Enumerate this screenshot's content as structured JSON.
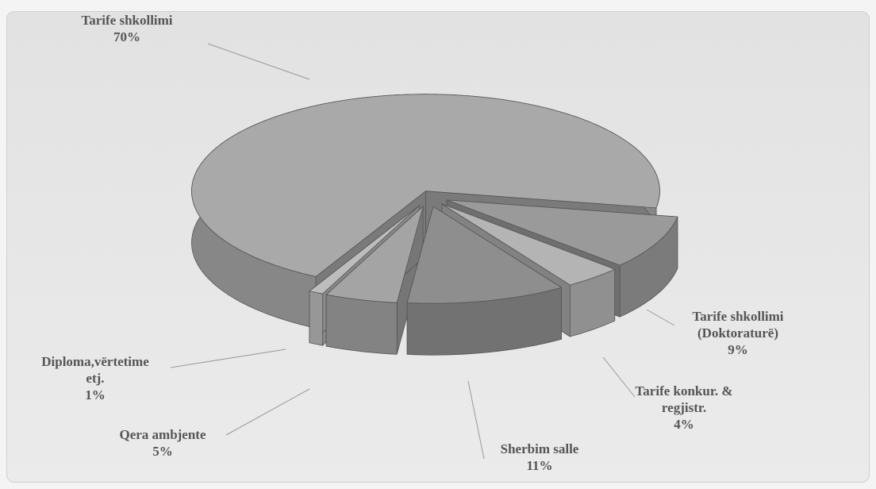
{
  "chart_data": {
    "type": "pie",
    "categories": [
      "Tarife shkollimi\n(Doktoraturë)",
      "Tarife konkur. &\nregjistr.",
      "Sherbim salle",
      "Qera ambjente",
      "Diploma,vërtetime\netj.",
      "Tarife shkollimi"
    ],
    "values": [
      9,
      4,
      11,
      5,
      1,
      70
    ],
    "value_labels": [
      "9%",
      "4%",
      "11%",
      "5%",
      "1%",
      "70%"
    ],
    "colors": [
      "#9a9a9a",
      "#b4b4b4",
      "#8e8e8e",
      "#a4a4a4",
      "#bdbdbd",
      "#a9a9a9"
    ]
  }
}
